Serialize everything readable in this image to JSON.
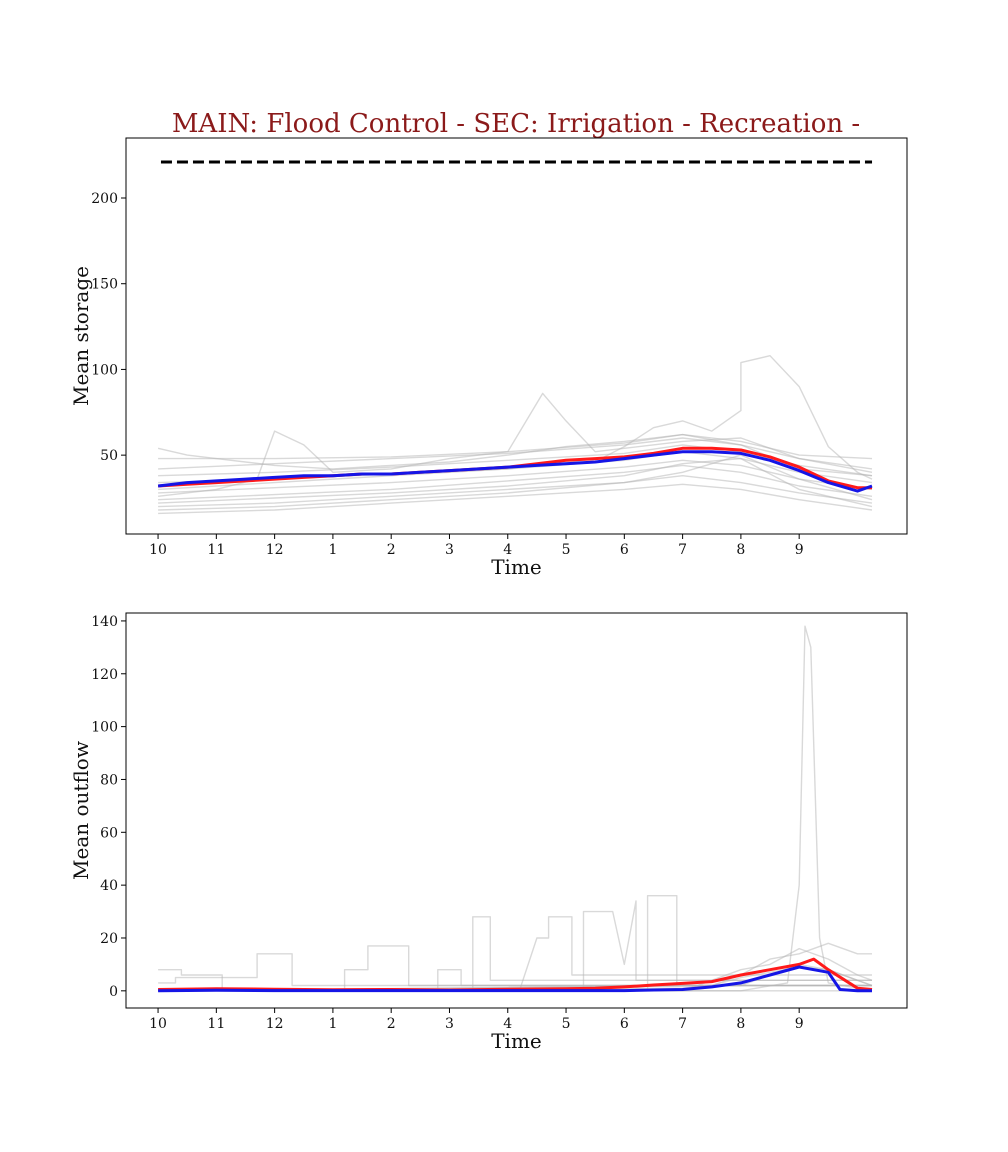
{
  "figure": {
    "title": "MAIN: Flood Control - SEC: Irrigation - Recreation -"
  },
  "colors": {
    "title": "#8b1a1a",
    "series_red": "#ff1a1a",
    "series_blue": "#1515e6",
    "ensemble_gray": "#b4b4b4",
    "reference_line": "#000000"
  },
  "chart_data": [
    {
      "type": "line",
      "xlabel": "Time",
      "ylabel": "Mean storage",
      "xticks": [
        "10",
        "11",
        "12",
        "1",
        "2",
        "3",
        "4",
        "5",
        "6",
        "7",
        "8",
        "9"
      ],
      "yticks": [
        50,
        100,
        150,
        200
      ],
      "xlim": [
        -0.55,
        12.85
      ],
      "ylim": [
        4,
        235
      ],
      "grid": false,
      "legend": "none",
      "reference_line": {
        "y": 221,
        "style": "dashed",
        "x_start": 0.05,
        "x_end": 12.25
      },
      "series": [
        {
          "color": "red",
          "x": [
            0,
            0.5,
            1,
            1.5,
            2,
            2.5,
            3,
            3.5,
            4,
            4.5,
            5,
            5.5,
            6,
            6.5,
            7,
            7.5,
            8,
            8.5,
            9,
            9.5,
            10,
            10.5,
            11,
            11.5,
            12,
            12.25
          ],
          "y": [
            32,
            33,
            34,
            35,
            36,
            37,
            38,
            39,
            39,
            40,
            41,
            42,
            43,
            45,
            47,
            48,
            49,
            51,
            54,
            54,
            53,
            49,
            43,
            35,
            31,
            31
          ]
        },
        {
          "color": "blue",
          "x": [
            0,
            0.5,
            1,
            1.5,
            2,
            2.5,
            3,
            3.5,
            4,
            4.5,
            5,
            5.5,
            6,
            6.5,
            7,
            7.5,
            8,
            8.5,
            9,
            9.5,
            10,
            10.5,
            11,
            11.5,
            12,
            12.25
          ],
          "y": [
            32,
            34,
            35,
            36,
            37,
            38,
            38,
            39,
            39,
            40,
            41,
            42,
            43,
            44,
            45,
            46,
            48,
            50,
            52,
            52,
            51,
            47,
            41,
            34,
            29,
            32
          ]
        }
      ],
      "ensemble": [
        {
          "x": [
            0,
            2,
            4,
            6,
            8,
            9,
            10,
            11,
            12.25
          ],
          "y": [
            16,
            18,
            22,
            26,
            30,
            33,
            30,
            24,
            18
          ]
        },
        {
          "x": [
            0,
            2,
            4,
            6,
            8,
            9,
            10,
            11,
            12.25
          ],
          "y": [
            20,
            22,
            26,
            30,
            34,
            38,
            34,
            28,
            22
          ]
        },
        {
          "x": [
            0,
            2,
            4,
            6,
            8,
            9,
            10,
            11,
            12.25
          ],
          "y": [
            24,
            27,
            30,
            35,
            40,
            44,
            40,
            32,
            26
          ]
        },
        {
          "x": [
            0,
            2,
            4,
            6,
            8,
            9,
            10,
            11,
            12.25
          ],
          "y": [
            28,
            31,
            34,
            38,
            43,
            47,
            44,
            36,
            30
          ]
        },
        {
          "x": [
            0,
            2,
            4,
            6,
            8,
            9,
            10,
            11,
            12.25
          ],
          "y": [
            34,
            36,
            39,
            42,
            47,
            52,
            48,
            40,
            34
          ]
        },
        {
          "x": [
            0,
            2,
            4,
            6,
            8,
            9,
            10,
            11,
            12.25
          ],
          "y": [
            38,
            40,
            43,
            47,
            51,
            56,
            52,
            44,
            38
          ]
        },
        {
          "x": [
            0,
            2,
            4,
            6,
            8,
            9,
            10,
            11,
            12.25
          ],
          "y": [
            42,
            45,
            48,
            51,
            56,
            60,
            56,
            48,
            42
          ]
        },
        {
          "x": [
            0,
            2,
            4,
            6,
            8,
            9,
            10,
            11,
            12.25
          ],
          "y": [
            48,
            48,
            49,
            52,
            57,
            62,
            58,
            50,
            48
          ]
        },
        {
          "x": [
            0,
            0.5,
            1,
            2,
            3,
            4,
            5,
            6,
            7,
            8,
            9,
            10,
            11,
            12.25
          ],
          "y": [
            54,
            50,
            48,
            44,
            42,
            44,
            46,
            50,
            55,
            58,
            62,
            56,
            42,
            38
          ]
        },
        {
          "x": [
            0,
            1,
            1.7,
            2,
            2.5,
            3,
            4,
            5,
            6,
            6.6,
            7,
            7.5,
            8,
            9,
            10,
            11,
            12.25
          ],
          "y": [
            26,
            30,
            36,
            64,
            56,
            40,
            42,
            48,
            52,
            86,
            70,
            52,
            54,
            58,
            60,
            48,
            40
          ]
        },
        {
          "x": [
            0,
            2,
            4,
            6,
            7.6,
            8,
            8.5,
            9,
            9.5,
            10,
            10,
            10.5,
            11,
            11.5,
            12,
            12.25
          ],
          "y": [
            30,
            34,
            38,
            42,
            48,
            55,
            66,
            70,
            64,
            76,
            104,
            108,
            90,
            55,
            40,
            36
          ]
        },
        {
          "x": [
            0,
            2,
            4,
            6,
            8,
            9,
            10,
            11,
            12.25
          ],
          "y": [
            22,
            25,
            28,
            32,
            38,
            45,
            48,
            30,
            20
          ]
        },
        {
          "x": [
            0,
            2,
            4,
            6,
            8,
            9,
            10,
            11,
            12.25
          ],
          "y": [
            18,
            20,
            24,
            28,
            34,
            40,
            50,
            36,
            24
          ]
        }
      ]
    },
    {
      "type": "line",
      "xlabel": "Time",
      "ylabel": "Mean outflow",
      "xticks": [
        "10",
        "11",
        "12",
        "1",
        "2",
        "3",
        "4",
        "5",
        "6",
        "7",
        "8",
        "9"
      ],
      "yticks": [
        0,
        20,
        40,
        60,
        80,
        100,
        120,
        140
      ],
      "xlim": [
        -0.55,
        12.85
      ],
      "ylim": [
        -6.5,
        143
      ],
      "grid": false,
      "legend": "none",
      "series": [
        {
          "color": "red",
          "x": [
            0,
            1,
            2,
            3,
            4,
            5,
            6,
            7,
            7.5,
            8,
            8.5,
            9,
            9.5,
            10,
            10.5,
            11,
            11.25,
            11.5,
            12,
            12.25
          ],
          "y": [
            0.5,
            0.8,
            0.6,
            0.4,
            0.5,
            0.3,
            0.6,
            0.8,
            1.0,
            1.5,
            2.2,
            2.8,
            3.5,
            6,
            8,
            10,
            12,
            8,
            1,
            0.5
          ]
        },
        {
          "color": "blue",
          "x": [
            0,
            1,
            2,
            3,
            4,
            5,
            6,
            7,
            8,
            8.5,
            9,
            9.5,
            10,
            10.5,
            11,
            11.5,
            11.7,
            12,
            12.25
          ],
          "y": [
            0,
            0.2,
            0.1,
            0.1,
            0.1,
            0.1,
            0.1,
            0.1,
            0.1,
            0.3,
            0.5,
            1.5,
            3,
            6,
            9,
            7,
            0.5,
            0,
            0
          ]
        }
      ],
      "ensemble": [
        {
          "x": [
            0,
            0.4,
            0.4,
            1.1,
            1.1,
            12.25
          ],
          "y": [
            8,
            8,
            6,
            6,
            0,
            0
          ]
        },
        {
          "x": [
            0,
            0.3,
            0.3,
            1.7,
            1.7,
            2.3,
            2.3,
            12.25
          ],
          "y": [
            3,
            3,
            5,
            5,
            14,
            14,
            2,
            2
          ]
        },
        {
          "x": [
            0,
            3.2,
            3.2,
            3.6,
            3.6,
            4.3,
            4.3,
            12.25
          ],
          "y": [
            0,
            0,
            8,
            8,
            17,
            17,
            2,
            2
          ]
        },
        {
          "x": [
            0,
            4.8,
            4.8,
            5.2,
            5.2,
            12.25
          ],
          "y": [
            0,
            0,
            8,
            8,
            2,
            2
          ]
        },
        {
          "x": [
            0,
            5.4,
            5.4,
            5.7,
            5.7,
            12.25
          ],
          "y": [
            0,
            0,
            28,
            28,
            4,
            4
          ]
        },
        {
          "x": [
            0,
            6.2,
            6.5,
            6.7,
            6.7,
            7.1,
            7.1,
            12.25
          ],
          "y": [
            0,
            0,
            20,
            20,
            28,
            28,
            6,
            6
          ]
        },
        {
          "x": [
            0,
            7.3,
            7.3,
            7.8,
            8,
            8.2,
            8.2,
            12.25
          ],
          "y": [
            0,
            0,
            30,
            30,
            10,
            34,
            4,
            4
          ]
        },
        {
          "x": [
            0,
            8.4,
            8.4,
            8.9,
            8.9,
            12.25
          ],
          "y": [
            0,
            0,
            36,
            36,
            2,
            2
          ]
        },
        {
          "x": [
            0,
            9,
            9.5,
            10,
            10.5,
            11,
            11.5,
            12,
            12.25
          ],
          "y": [
            0,
            0,
            4,
            8,
            10,
            16,
            12,
            6,
            4
          ]
        },
        {
          "x": [
            0,
            9,
            9.5,
            10,
            10.5,
            11,
            11.5,
            12,
            12.25
          ],
          "y": [
            0,
            1,
            2,
            5,
            7,
            9,
            8,
            4,
            2
          ]
        },
        {
          "x": [
            0,
            9.5,
            10,
            10.5,
            11,
            11.5,
            12,
            12.25
          ],
          "y": [
            0,
            2,
            6,
            12,
            14,
            18,
            14,
            14
          ]
        },
        {
          "x": [
            0,
            10,
            10.8,
            11.0,
            11.1,
            11.2,
            11.35,
            11.5,
            12.25
          ],
          "y": [
            0,
            0,
            3,
            40,
            138,
            130,
            20,
            3,
            0
          ]
        },
        {
          "x": [
            0,
            10,
            10.5,
            11,
            11.5,
            12,
            12.25
          ],
          "y": [
            0,
            2,
            6,
            10,
            8,
            4,
            2
          ]
        }
      ]
    }
  ]
}
